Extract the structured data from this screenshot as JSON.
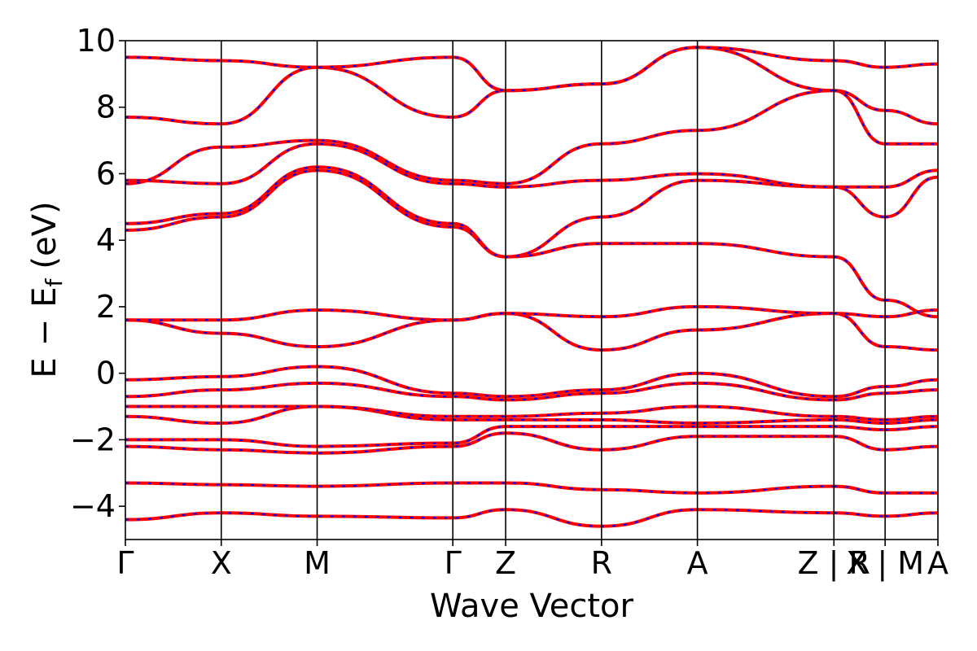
{
  "chart_data": {
    "type": "line",
    "title": "",
    "xlabel": "Wave Vector",
    "ylabel_parts": [
      "E",
      "−",
      "E",
      "f",
      "(eV)"
    ],
    "ylim": [
      -5,
      10
    ],
    "yticks": [
      "−4",
      "−2",
      "0",
      "2",
      "4",
      "6",
      "8",
      "10"
    ],
    "ytick_values": [
      -4,
      -2,
      0,
      2,
      4,
      6,
      8,
      10
    ],
    "xlim": [
      0,
      1
    ],
    "kpoints": [
      {
        "label": "Γ",
        "x": 0.0
      },
      {
        "label": "X",
        "x": 0.118
      },
      {
        "label": "M",
        "x": 0.236
      },
      {
        "label": "Γ",
        "x": 0.403
      },
      {
        "label": "Z",
        "x": 0.468
      },
      {
        "label": "R",
        "x": 0.586
      },
      {
        "label": "A",
        "x": 0.704
      },
      {
        "label": "Z | R",
        "x": 0.872
      },
      {
        "label": "X | M",
        "x": 0.935
      },
      {
        "label": "A",
        "x": 1.0
      }
    ],
    "segment_breaks": [
      0.872,
      0.935
    ],
    "grid": false,
    "series_style": {
      "solid_color": "#ff0000",
      "dashed_color": "#0000ff"
    },
    "bands_nodes": [
      [
        -4.4,
        -4.2,
        -4.3,
        -4.35,
        -4.1,
        -4.6,
        -4.1,
        -4.2,
        -4.3,
        -4.2,
        -4.1
      ],
      [
        -3.3,
        -3.35,
        -3.4,
        -3.3,
        -3.3,
        -3.5,
        -3.6,
        -3.4,
        -3.6,
        -3.6,
        -3.6
      ],
      [
        -2.2,
        -2.3,
        -2.4,
        -2.2,
        -1.8,
        -2.3,
        -1.9,
        -1.9,
        -2.3,
        -2.2,
        -2.2
      ],
      [
        -2.0,
        -2.0,
        -2.2,
        -2.1,
        -1.6,
        -1.6,
        -1.6,
        -1.6,
        -1.7,
        -1.6,
        -1.6
      ],
      [
        -1.3,
        -1.5,
        -1.0,
        -1.4,
        -1.4,
        -1.4,
        -1.5,
        -1.4,
        -1.5,
        -1.4,
        -1.5
      ],
      [
        -1.0,
        -1.0,
        -1.0,
        -1.3,
        -1.3,
        -1.2,
        -1.0,
        -1.3,
        -1.4,
        -1.3,
        -1.0
      ],
      [
        -0.7,
        -0.5,
        -0.3,
        -0.7,
        -0.8,
        -0.6,
        -0.3,
        -0.8,
        -0.6,
        -0.5,
        -0.5
      ],
      [
        -0.2,
        -0.1,
        0.2,
        -0.6,
        -0.7,
        -0.5,
        0.0,
        -0.7,
        -0.4,
        -0.2,
        -0.2
      ],
      [
        1.6,
        1.2,
        0.8,
        1.6,
        1.8,
        0.7,
        1.3,
        1.8,
        0.8,
        0.7,
        1.3
      ],
      [
        1.6,
        1.6,
        1.9,
        1.6,
        1.8,
        1.7,
        2.0,
        1.8,
        1.7,
        1.9,
        2.0
      ],
      [
        4.3,
        4.7,
        6.1,
        4.4,
        3.5,
        3.9,
        3.9,
        3.5,
        2.2,
        1.7,
        3.9
      ],
      [
        4.5,
        4.8,
        6.2,
        4.5,
        3.5,
        4.7,
        5.8,
        5.6,
        4.7,
        5.9,
        5.8
      ],
      [
        5.8,
        5.7,
        6.9,
        5.7,
        5.6,
        5.8,
        6.0,
        5.6,
        5.6,
        6.1,
        6.0
      ],
      [
        5.7,
        6.8,
        7.0,
        5.8,
        5.7,
        6.9,
        7.3,
        8.5,
        6.9,
        6.9,
        7.3
      ],
      [
        7.7,
        7.5,
        9.2,
        7.7,
        8.5,
        8.7,
        9.8,
        8.5,
        7.9,
        7.5,
        9.8
      ],
      [
        9.5,
        9.4,
        9.2,
        9.5,
        8.5,
        8.7,
        9.8,
        9.4,
        9.2,
        9.3,
        9.8
      ]
    ]
  }
}
